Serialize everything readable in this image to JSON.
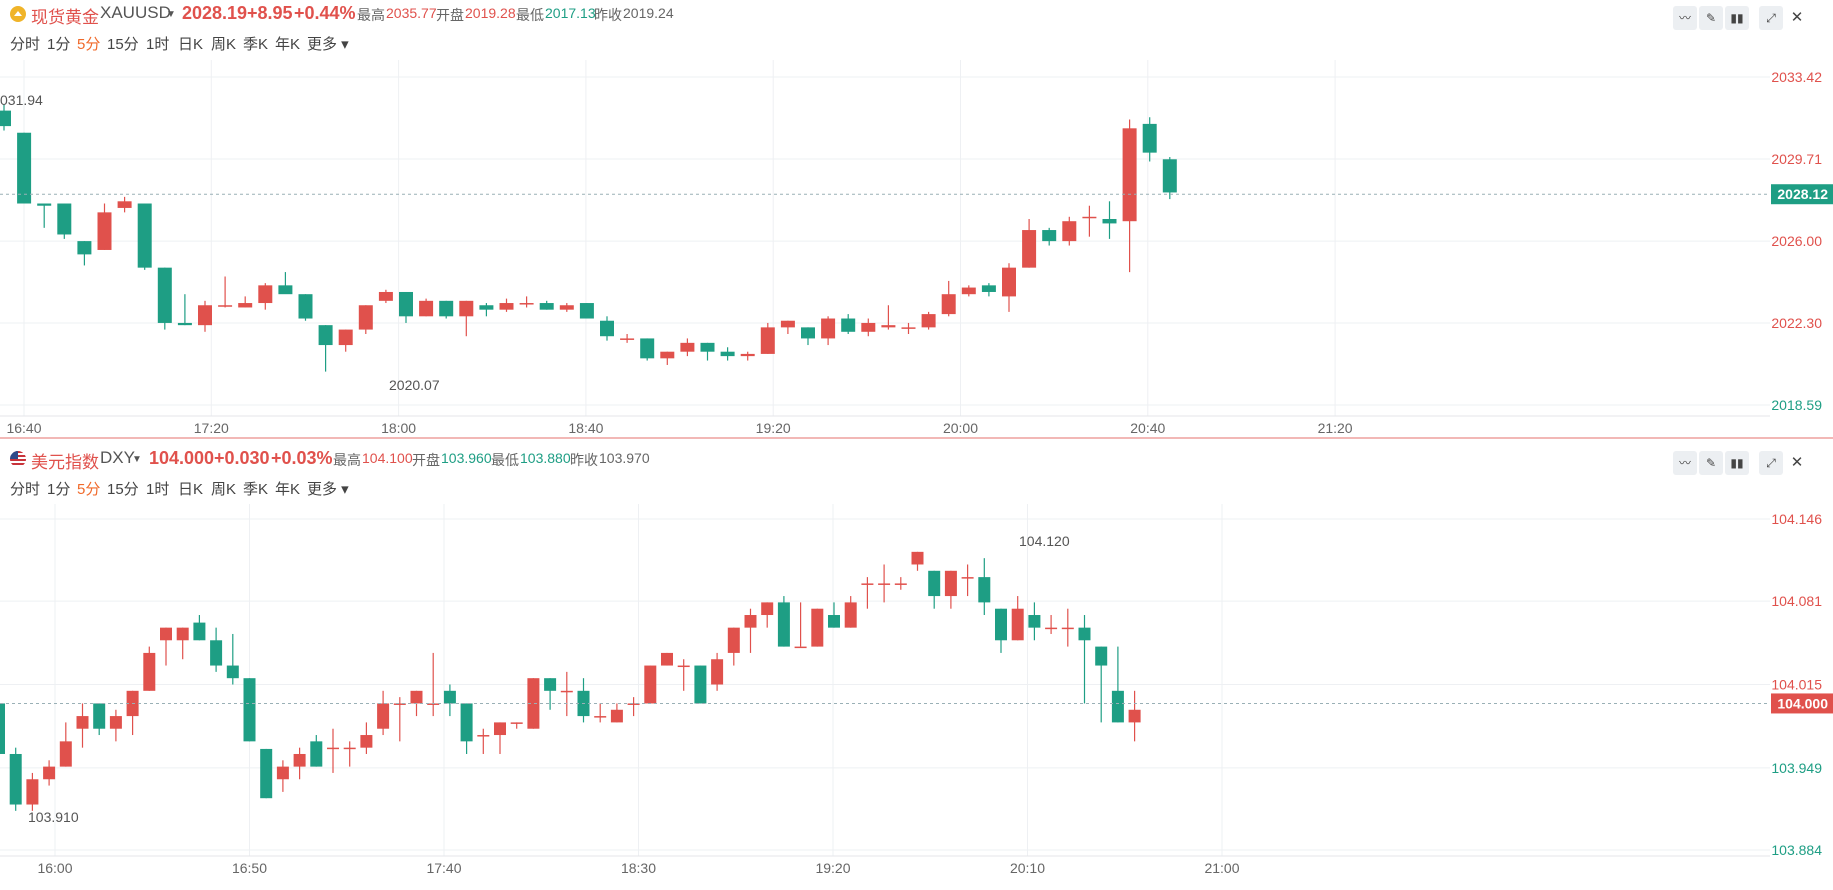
{
  "colors": {
    "up": "#e0514c",
    "down": "#1e9e84",
    "active": "#f06a2b",
    "grid": "#eef0f3",
    "lastline": "#9ab0b6"
  },
  "toolbar_icons": [
    "indicator-icon",
    "draw-icon",
    "candle-type-icon",
    "expand-icon",
    "close-icon"
  ],
  "gold": {
    "name": "现货黄金",
    "code": "XAUUSD",
    "price": "2028.19",
    "change": "+8.95",
    "pct": "+0.44%",
    "high_label": "最高",
    "high": "2035.77",
    "open_label": "开盘",
    "open": "2019.28",
    "low_label": "最低",
    "low": "2017.13",
    "prev_label": "昨收",
    "prev": "2019.24",
    "periods": [
      "分时",
      "1分",
      "5分",
      "15分",
      "1时",
      "日K",
      "周K",
      "季K",
      "年K",
      "更多"
    ],
    "active_period": "5分"
  },
  "dxy": {
    "name": "美元指数",
    "code": "DXY",
    "price": "104.000",
    "change": "+0.030",
    "pct": "+0.03%",
    "high_label": "最高",
    "high": "104.100",
    "open_label": "开盘",
    "open": "103.960",
    "low_label": "最低",
    "low": "103.880",
    "prev_label": "昨收",
    "prev": "103.970",
    "periods": [
      "分时",
      "1分",
      "5分",
      "15分",
      "1时",
      "日K",
      "周K",
      "季K",
      "年K",
      "更多"
    ],
    "active_period": "5分"
  },
  "chart_data": [
    {
      "type": "candlestick",
      "symbol": "XAUUSD",
      "interval": "5分",
      "ylim": [
        2018.59,
        2033.42
      ],
      "y_ticks": [
        "2033.42",
        "2029.71",
        "2026.00",
        "2022.30",
        "2018.59"
      ],
      "x_ticks": [
        "16:40",
        "17:20",
        "18:00",
        "18:40",
        "19:20",
        "20:00",
        "20:40",
        "21:20"
      ],
      "last_price": "2028.12",
      "annotations": {
        "max_label": "031.94",
        "min_label": "2020.07"
      },
      "candles": [
        {
          "o": 2031.9,
          "h": 2032.2,
          "l": 2031.0,
          "c": 2031.2
        },
        {
          "o": 2030.9,
          "h": 2030.9,
          "l": 2027.7,
          "c": 2027.7
        },
        {
          "o": 2027.7,
          "h": 2027.7,
          "l": 2026.6,
          "c": 2027.6
        },
        {
          "o": 2027.7,
          "h": 2027.7,
          "l": 2026.1,
          "c": 2026.3
        },
        {
          "o": 2026.0,
          "h": 2026.0,
          "l": 2024.9,
          "c": 2025.4
        },
        {
          "o": 2025.6,
          "h": 2027.7,
          "l": 2025.6,
          "c": 2027.3
        },
        {
          "o": 2027.5,
          "h": 2028.0,
          "l": 2027.3,
          "c": 2027.8
        },
        {
          "o": 2027.7,
          "h": 2027.7,
          "l": 2024.7,
          "c": 2024.8
        },
        {
          "o": 2024.8,
          "h": 2024.8,
          "l": 2022.0,
          "c": 2022.3
        },
        {
          "o": 2022.3,
          "h": 2023.6,
          "l": 2022.2,
          "c": 2022.2
        },
        {
          "o": 2022.2,
          "h": 2023.3,
          "l": 2021.9,
          "c": 2023.1
        },
        {
          "o": 2023.1,
          "h": 2024.4,
          "l": 2023.0,
          "c": 2023.1
        },
        {
          "o": 2023.0,
          "h": 2023.5,
          "l": 2023.0,
          "c": 2023.2
        },
        {
          "o": 2023.2,
          "h": 2024.1,
          "l": 2022.9,
          "c": 2024.0
        },
        {
          "o": 2024.0,
          "h": 2024.6,
          "l": 2023.7,
          "c": 2023.6
        },
        {
          "o": 2023.6,
          "h": 2023.6,
          "l": 2022.4,
          "c": 2022.5
        },
        {
          "o": 2022.2,
          "h": 2022.2,
          "l": 2020.1,
          "c": 2021.3
        },
        {
          "o": 2021.3,
          "h": 2022.0,
          "l": 2021.0,
          "c": 2022.0
        },
        {
          "o": 2022.0,
          "h": 2023.1,
          "l": 2021.8,
          "c": 2023.1
        },
        {
          "o": 2023.3,
          "h": 2023.8,
          "l": 2023.2,
          "c": 2023.7
        },
        {
          "o": 2023.7,
          "h": 2023.7,
          "l": 2022.3,
          "c": 2022.6
        },
        {
          "o": 2022.6,
          "h": 2023.4,
          "l": 2022.6,
          "c": 2023.3
        },
        {
          "o": 2023.3,
          "h": 2023.3,
          "l": 2022.5,
          "c": 2022.6
        },
        {
          "o": 2022.6,
          "h": 2023.3,
          "l": 2021.7,
          "c": 2023.3
        },
        {
          "o": 2023.1,
          "h": 2023.2,
          "l": 2022.6,
          "c": 2022.9
        },
        {
          "o": 2022.9,
          "h": 2023.4,
          "l": 2022.8,
          "c": 2023.2
        },
        {
          "o": 2023.2,
          "h": 2023.5,
          "l": 2023.0,
          "c": 2023.2
        },
        {
          "o": 2023.2,
          "h": 2023.3,
          "l": 2022.9,
          "c": 2022.9
        },
        {
          "o": 2022.9,
          "h": 2023.2,
          "l": 2022.8,
          "c": 2023.1
        },
        {
          "o": 2023.2,
          "h": 2023.2,
          "l": 2022.5,
          "c": 2022.5
        },
        {
          "o": 2022.4,
          "h": 2022.6,
          "l": 2021.5,
          "c": 2021.7
        },
        {
          "o": 2021.6,
          "h": 2021.8,
          "l": 2021.4,
          "c": 2021.6
        },
        {
          "o": 2021.6,
          "h": 2021.6,
          "l": 2020.6,
          "c": 2020.7
        },
        {
          "o": 2020.7,
          "h": 2021.0,
          "l": 2020.4,
          "c": 2021.0
        },
        {
          "o": 2021.0,
          "h": 2021.6,
          "l": 2020.8,
          "c": 2021.4
        },
        {
          "o": 2021.4,
          "h": 2021.4,
          "l": 2020.6,
          "c": 2021.0
        },
        {
          "o": 2021.0,
          "h": 2021.2,
          "l": 2020.6,
          "c": 2020.8
        },
        {
          "o": 2020.8,
          "h": 2021.0,
          "l": 2020.6,
          "c": 2020.9
        },
        {
          "o": 2020.9,
          "h": 2022.3,
          "l": 2020.9,
          "c": 2022.1
        },
        {
          "o": 2022.1,
          "h": 2022.4,
          "l": 2021.8,
          "c": 2022.4
        },
        {
          "o": 2022.1,
          "h": 2022.1,
          "l": 2021.3,
          "c": 2021.6
        },
        {
          "o": 2021.6,
          "h": 2022.6,
          "l": 2021.3,
          "c": 2022.5
        },
        {
          "o": 2022.5,
          "h": 2022.7,
          "l": 2021.8,
          "c": 2021.9
        },
        {
          "o": 2021.9,
          "h": 2022.5,
          "l": 2021.7,
          "c": 2022.3
        },
        {
          "o": 2022.1,
          "h": 2023.1,
          "l": 2022.0,
          "c": 2022.2
        },
        {
          "o": 2022.1,
          "h": 2022.3,
          "l": 2021.8,
          "c": 2022.1
        },
        {
          "o": 2022.1,
          "h": 2022.8,
          "l": 2022.0,
          "c": 2022.7
        },
        {
          "o": 2022.7,
          "h": 2024.2,
          "l": 2022.6,
          "c": 2023.6
        },
        {
          "o": 2023.6,
          "h": 2024.0,
          "l": 2023.5,
          "c": 2023.9
        },
        {
          "o": 2024.0,
          "h": 2024.1,
          "l": 2023.5,
          "c": 2023.7
        },
        {
          "o": 2023.5,
          "h": 2025.0,
          "l": 2022.8,
          "c": 2024.8
        },
        {
          "o": 2024.8,
          "h": 2027.0,
          "l": 2024.8,
          "c": 2026.5
        },
        {
          "o": 2026.5,
          "h": 2026.6,
          "l": 2025.8,
          "c": 2026.0
        },
        {
          "o": 2026.0,
          "h": 2027.1,
          "l": 2025.8,
          "c": 2026.9
        },
        {
          "o": 2027.1,
          "h": 2027.6,
          "l": 2026.2,
          "c": 2027.1
        },
        {
          "o": 2027.0,
          "h": 2027.8,
          "l": 2026.1,
          "c": 2026.8
        },
        {
          "o": 2026.9,
          "h": 2031.5,
          "l": 2024.6,
          "c": 2031.1
        },
        {
          "o": 2031.3,
          "h": 2031.6,
          "l": 2029.6,
          "c": 2030.0
        },
        {
          "o": 2029.7,
          "h": 2029.8,
          "l": 2027.9,
          "c": 2028.2
        }
      ]
    },
    {
      "type": "candlestick",
      "symbol": "DXY",
      "interval": "5分",
      "ylim": [
        103.884,
        104.146
      ],
      "y_ticks": [
        "104.146",
        "104.081",
        "104.015",
        "103.949",
        "103.884"
      ],
      "x_ticks": [
        "16:00",
        "16:50",
        "17:40",
        "18:30",
        "19:20",
        "20:10",
        "21:00"
      ],
      "last_price": "104.000",
      "annotations": {
        "max_label": "104.120",
        "min_label": "103.910"
      },
      "candles": [
        {
          "o": 104.0,
          "h": 104.0,
          "l": 103.96,
          "c": 103.96
        },
        {
          "o": 103.96,
          "h": 103.965,
          "l": 103.915,
          "c": 103.92
        },
        {
          "o": 103.92,
          "h": 103.945,
          "l": 103.915,
          "c": 103.94
        },
        {
          "o": 103.94,
          "h": 103.955,
          "l": 103.935,
          "c": 103.95
        },
        {
          "o": 103.95,
          "h": 103.985,
          "l": 103.95,
          "c": 103.97
        },
        {
          "o": 103.98,
          "h": 104.0,
          "l": 103.965,
          "c": 103.99
        },
        {
          "o": 104.0,
          "h": 104.0,
          "l": 103.975,
          "c": 103.98
        },
        {
          "o": 103.98,
          "h": 103.995,
          "l": 103.97,
          "c": 103.99
        },
        {
          "o": 103.99,
          "h": 104.01,
          "l": 103.975,
          "c": 104.01
        },
        {
          "o": 104.01,
          "h": 104.045,
          "l": 104.01,
          "c": 104.04
        },
        {
          "o": 104.05,
          "h": 104.06,
          "l": 104.03,
          "c": 104.06
        },
        {
          "o": 104.05,
          "h": 104.06,
          "l": 104.035,
          "c": 104.06
        },
        {
          "o": 104.064,
          "h": 104.07,
          "l": 104.05,
          "c": 104.05
        },
        {
          "o": 104.05,
          "h": 104.06,
          "l": 104.025,
          "c": 104.03
        },
        {
          "o": 104.03,
          "h": 104.055,
          "l": 104.015,
          "c": 104.02
        },
        {
          "o": 104.02,
          "h": 104.02,
          "l": 103.97,
          "c": 103.97
        },
        {
          "o": 103.964,
          "h": 103.964,
          "l": 103.925,
          "c": 103.925
        },
        {
          "o": 103.94,
          "h": 103.955,
          "l": 103.93,
          "c": 103.95
        },
        {
          "o": 103.95,
          "h": 103.965,
          "l": 103.94,
          "c": 103.96
        },
        {
          "o": 103.97,
          "h": 103.975,
          "l": 103.95,
          "c": 103.95
        },
        {
          "o": 103.965,
          "h": 103.98,
          "l": 103.945,
          "c": 103.965
        },
        {
          "o": 103.965,
          "h": 103.97,
          "l": 103.95,
          "c": 103.965
        },
        {
          "o": 103.965,
          "h": 103.985,
          "l": 103.96,
          "c": 103.975
        },
        {
          "o": 103.98,
          "h": 104.01,
          "l": 103.975,
          "c": 104.0
        },
        {
          "o": 104.0,
          "h": 104.005,
          "l": 103.97,
          "c": 104.0
        },
        {
          "o": 104.0,
          "h": 104.01,
          "l": 103.99,
          "c": 104.01
        },
        {
          "o": 104.0,
          "h": 104.04,
          "l": 103.99,
          "c": 104.0
        },
        {
          "o": 104.01,
          "h": 104.015,
          "l": 103.99,
          "c": 104.0
        },
        {
          "o": 104.0,
          "h": 104.0,
          "l": 103.96,
          "c": 103.97
        },
        {
          "o": 103.975,
          "h": 103.98,
          "l": 103.96,
          "c": 103.975
        },
        {
          "o": 103.975,
          "h": 103.985,
          "l": 103.96,
          "c": 103.985
        },
        {
          "o": 103.985,
          "h": 103.985,
          "l": 103.98,
          "c": 103.985
        },
        {
          "o": 103.98,
          "h": 104.02,
          "l": 103.98,
          "c": 104.02
        },
        {
          "o": 104.02,
          "h": 104.02,
          "l": 103.995,
          "c": 104.01
        },
        {
          "o": 104.01,
          "h": 104.025,
          "l": 103.99,
          "c": 104.01
        },
        {
          "o": 104.01,
          "h": 104.02,
          "l": 103.985,
          "c": 103.99
        },
        {
          "o": 103.99,
          "h": 104.0,
          "l": 103.985,
          "c": 103.99
        },
        {
          "o": 103.985,
          "h": 104.0,
          "l": 103.985,
          "c": 103.995
        },
        {
          "o": 104.0,
          "h": 104.005,
          "l": 103.99,
          "c": 104.0
        },
        {
          "o": 104.0,
          "h": 104.03,
          "l": 104.0,
          "c": 104.03
        },
        {
          "o": 104.03,
          "h": 104.04,
          "l": 104.03,
          "c": 104.04
        },
        {
          "o": 104.03,
          "h": 104.035,
          "l": 104.01,
          "c": 104.03
        },
        {
          "o": 104.03,
          "h": 104.03,
          "l": 104.0,
          "c": 104.0
        },
        {
          "o": 104.015,
          "h": 104.04,
          "l": 104.01,
          "c": 104.035
        },
        {
          "o": 104.04,
          "h": 104.06,
          "l": 104.03,
          "c": 104.06
        },
        {
          "o": 104.06,
          "h": 104.075,
          "l": 104.04,
          "c": 104.07
        },
        {
          "o": 104.07,
          "h": 104.08,
          "l": 104.06,
          "c": 104.08
        },
        {
          "o": 104.08,
          "h": 104.085,
          "l": 104.045,
          "c": 104.045
        },
        {
          "o": 104.045,
          "h": 104.08,
          "l": 104.045,
          "c": 104.045
        },
        {
          "o": 104.045,
          "h": 104.075,
          "l": 104.045,
          "c": 104.075
        },
        {
          "o": 104.07,
          "h": 104.08,
          "l": 104.06,
          "c": 104.06
        },
        {
          "o": 104.06,
          "h": 104.085,
          "l": 104.06,
          "c": 104.08
        },
        {
          "o": 104.095,
          "h": 104.1,
          "l": 104.075,
          "c": 104.095
        },
        {
          "o": 104.095,
          "h": 104.11,
          "l": 104.08,
          "c": 104.095
        },
        {
          "o": 104.095,
          "h": 104.1,
          "l": 104.09,
          "c": 104.095
        },
        {
          "o": 104.11,
          "h": 104.12,
          "l": 104.105,
          "c": 104.12
        },
        {
          "o": 104.105,
          "h": 104.105,
          "l": 104.075,
          "c": 104.085
        },
        {
          "o": 104.085,
          "h": 104.105,
          "l": 104.075,
          "c": 104.105
        },
        {
          "o": 104.1,
          "h": 104.11,
          "l": 104.085,
          "c": 104.1
        },
        {
          "o": 104.1,
          "h": 104.115,
          "l": 104.07,
          "c": 104.08
        },
        {
          "o": 104.075,
          "h": 104.075,
          "l": 104.04,
          "c": 104.05
        },
        {
          "o": 104.05,
          "h": 104.085,
          "l": 104.05,
          "c": 104.075
        },
        {
          "o": 104.07,
          "h": 104.08,
          "l": 104.05,
          "c": 104.06
        },
        {
          "o": 104.06,
          "h": 104.07,
          "l": 104.055,
          "c": 104.06
        },
        {
          "o": 104.06,
          "h": 104.075,
          "l": 104.045,
          "c": 104.06
        },
        {
          "o": 104.06,
          "h": 104.07,
          "l": 104.0,
          "c": 104.05
        },
        {
          "o": 104.045,
          "h": 104.045,
          "l": 103.985,
          "c": 104.03
        },
        {
          "o": 104.01,
          "h": 104.045,
          "l": 103.985,
          "c": 103.985
        },
        {
          "o": 103.985,
          "h": 104.01,
          "l": 103.97,
          "c": 103.995
        }
      ]
    }
  ]
}
